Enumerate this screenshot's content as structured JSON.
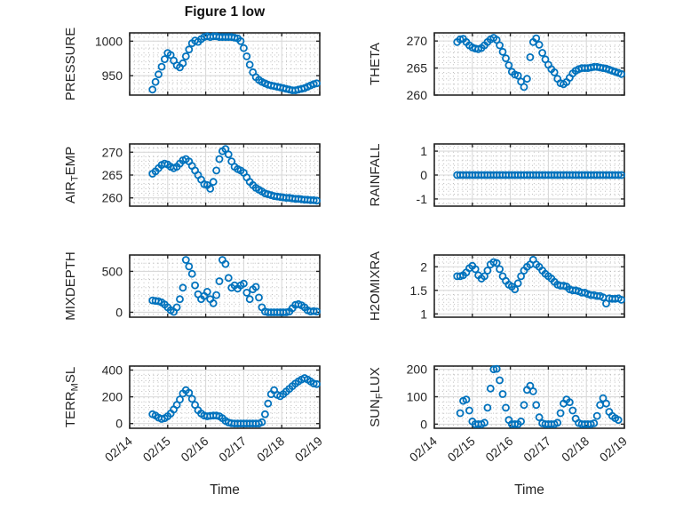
{
  "figure": {
    "title": "Figure 1 low",
    "xlabel": "Time",
    "marker_color": "#0072BD",
    "axis_color": "#262626",
    "grid_major_color": "#d9d9d9",
    "grid_minor_color": "#b5b5b5",
    "text_color": "#262626",
    "background": "#ffffff"
  },
  "chart_data": {
    "type": "scatter",
    "marker": "open-circle",
    "grid": "major-solid-minor-dotted",
    "legend": "none",
    "x_range": [
      14,
      19
    ],
    "x_ticks": [
      14,
      15,
      16,
      17,
      18,
      19
    ],
    "x_tick_labels": [
      "02/14",
      "02/15",
      "02/16",
      "02/17",
      "02/18",
      "02/19"
    ],
    "x_axis_label": "Time",
    "t": [
      14.6,
      14.68,
      14.76,
      14.84,
      14.92,
      15.0,
      15.08,
      15.16,
      15.24,
      15.32,
      15.4,
      15.48,
      15.56,
      15.64,
      15.72,
      15.8,
      15.88,
      15.96,
      16.04,
      16.12,
      16.2,
      16.28,
      16.36,
      16.44,
      16.52,
      16.6,
      16.68,
      16.76,
      16.84,
      16.92,
      17.0,
      17.08,
      17.16,
      17.24,
      17.32,
      17.4,
      17.48,
      17.56,
      17.64,
      17.72,
      17.8,
      17.88,
      17.96,
      18.04,
      18.12,
      18.2,
      18.28,
      18.36,
      18.44,
      18.52,
      18.6,
      18.68,
      18.76,
      18.84,
      18.92
    ],
    "panels": [
      {
        "name": "PRESSURE",
        "label_parts": [
          {
            "text": "PRESSURE",
            "sub": false
          }
        ],
        "y_ticks": [
          950,
          1000
        ],
        "y_range": [
          922,
          1012
        ],
        "values": [
          930,
          941,
          952,
          963,
          974,
          983,
          980,
          972,
          965,
          962,
          968,
          978,
          988,
          997,
          1001,
          999,
          1003,
          1006,
          1007,
          1006,
          1007,
          1007,
          1006,
          1006,
          1006,
          1006,
          1006,
          1005,
          1004,
          1000,
          990,
          978,
          966,
          955,
          948,
          944,
          941,
          939,
          937,
          936,
          935,
          934,
          933,
          932,
          931,
          930,
          929,
          929,
          930,
          931,
          932,
          934,
          936,
          938,
          939
        ]
      },
      {
        "name": "AIR_TEMP",
        "label_parts": [
          {
            "text": "AIR",
            "sub": false
          },
          {
            "text": "T",
            "sub": true
          },
          {
            "text": "EMP",
            "sub": false
          }
        ],
        "y_ticks": [
          260,
          265,
          270
        ],
        "y_range": [
          258.2,
          271.8
        ],
        "values": [
          265.3,
          265.8,
          266.5,
          267.2,
          267.5,
          267.3,
          266.8,
          266.5,
          266.8,
          267.5,
          268.2,
          268.5,
          268.0,
          267.0,
          266.0,
          265.0,
          264.0,
          263.0,
          262.8,
          262.0,
          263.5,
          266.0,
          268.5,
          270.2,
          270.7,
          269.5,
          268.0,
          266.8,
          266.3,
          266.0,
          265.5,
          264.5,
          263.5,
          262.8,
          262.2,
          261.8,
          261.4,
          261.0,
          260.8,
          260.6,
          260.4,
          260.3,
          260.2,
          260.1,
          260.0,
          260.0,
          259.9,
          259.8,
          259.8,
          259.7,
          259.6,
          259.6,
          259.5,
          259.5,
          259.4
        ]
      },
      {
        "name": "MIXDEPTH",
        "label_parts": [
          {
            "text": "MIXDEPTH",
            "sub": false
          }
        ],
        "y_ticks": [
          0,
          500
        ],
        "y_range": [
          -60,
          700
        ],
        "values": [
          145,
          140,
          135,
          120,
          95,
          60,
          25,
          5,
          60,
          160,
          300,
          640,
          560,
          470,
          330,
          220,
          160,
          200,
          250,
          160,
          110,
          210,
          380,
          640,
          590,
          420,
          300,
          330,
          290,
          330,
          350,
          240,
          160,
          280,
          310,
          180,
          60,
          10,
          0,
          0,
          0,
          0,
          0,
          0,
          0,
          10,
          50,
          90,
          100,
          85,
          60,
          25,
          10,
          15,
          10
        ]
      },
      {
        "name": "TERR_MSL",
        "label_parts": [
          {
            "text": "TERR",
            "sub": false
          },
          {
            "text": "M",
            "sub": true
          },
          {
            "text": "SL",
            "sub": false
          }
        ],
        "y_ticks": [
          0,
          200,
          400
        ],
        "y_range": [
          -35,
          430
        ],
        "values": [
          70,
          60,
          45,
          35,
          40,
          55,
          75,
          105,
          140,
          180,
          225,
          250,
          230,
          185,
          140,
          100,
          75,
          60,
          55,
          58,
          60,
          60,
          55,
          40,
          20,
          8,
          2,
          0,
          0,
          0,
          0,
          0,
          0,
          0,
          0,
          0,
          10,
          70,
          150,
          220,
          250,
          215,
          205,
          220,
          240,
          260,
          280,
          300,
          315,
          330,
          340,
          330,
          315,
          300,
          295
        ]
      },
      {
        "name": "THETA",
        "label_parts": [
          {
            "text": "THETA",
            "sub": false
          }
        ],
        "y_ticks": [
          260,
          265,
          270
        ],
        "y_range": [
          260,
          271.5
        ],
        "values": [
          269.8,
          270.3,
          270.4,
          269.8,
          269.2,
          268.8,
          268.6,
          268.5,
          268.7,
          269.2,
          269.8,
          270.3,
          270.6,
          270.2,
          269.2,
          268.0,
          266.8,
          265.5,
          264.3,
          263.8,
          263.6,
          262.5,
          261.5,
          263.0,
          267.0,
          269.8,
          270.5,
          269.3,
          267.8,
          266.6,
          265.6,
          264.8,
          264.2,
          263.0,
          262.2,
          262.0,
          262.4,
          263.2,
          264.0,
          264.5,
          264.8,
          265.0,
          265.0,
          265.0,
          265.1,
          265.2,
          265.2,
          265.1,
          265.0,
          264.9,
          264.7,
          264.5,
          264.3,
          264.1,
          263.9
        ]
      },
      {
        "name": "RAINFALL",
        "label_parts": [
          {
            "text": "RAINFALL",
            "sub": false
          }
        ],
        "y_ticks": [
          -1,
          0,
          1
        ],
        "y_range": [
          -1.3,
          1.3
        ],
        "values": [
          0,
          0,
          0,
          0,
          0,
          0,
          0,
          0,
          0,
          0,
          0,
          0,
          0,
          0,
          0,
          0,
          0,
          0,
          0,
          0,
          0,
          0,
          0,
          0,
          0,
          0,
          0,
          0,
          0,
          0,
          0,
          0,
          0,
          0,
          0,
          0,
          0,
          0,
          0,
          0,
          0,
          0,
          0,
          0,
          0,
          0,
          0,
          0,
          0,
          0,
          0,
          0,
          0,
          0,
          0
        ]
      },
      {
        "name": "H2OMIXRA",
        "label_parts": [
          {
            "text": "H2OMIXRA",
            "sub": false
          }
        ],
        "y_ticks": [
          1,
          1.5,
          2
        ],
        "y_range": [
          0.93,
          2.25
        ],
        "values": [
          1.8,
          1.8,
          1.82,
          1.88,
          1.97,
          2.02,
          1.95,
          1.82,
          1.75,
          1.8,
          1.92,
          2.05,
          2.1,
          2.08,
          1.95,
          1.8,
          1.7,
          1.62,
          1.58,
          1.52,
          1.65,
          1.8,
          1.92,
          2.0,
          2.05,
          2.15,
          2.05,
          2.0,
          1.92,
          1.85,
          1.8,
          1.75,
          1.68,
          1.62,
          1.6,
          1.6,
          1.58,
          1.52,
          1.5,
          1.5,
          1.48,
          1.45,
          1.45,
          1.42,
          1.4,
          1.4,
          1.38,
          1.38,
          1.35,
          1.22,
          1.33,
          1.32,
          1.32,
          1.33,
          1.3
        ]
      },
      {
        "name": "SUN_FLUX",
        "label_parts": [
          {
            "text": "SUN",
            "sub": false
          },
          {
            "text": "F",
            "sub": true
          },
          {
            "text": "LUX",
            "sub": false
          }
        ],
        "y_ticks": [
          0,
          100,
          200
        ],
        "y_range": [
          -15,
          212
        ],
        "values": [
          null,
          40,
          85,
          90,
          50,
          10,
          0,
          0,
          0,
          5,
          60,
          130,
          200,
          202,
          160,
          110,
          60,
          15,
          0,
          0,
          0,
          10,
          70,
          125,
          140,
          120,
          70,
          25,
          3,
          0,
          0,
          0,
          0,
          5,
          40,
          75,
          90,
          80,
          50,
          20,
          4,
          0,
          0,
          0,
          0,
          3,
          30,
          70,
          95,
          75,
          45,
          30,
          22,
          15,
          null
        ]
      }
    ]
  }
}
